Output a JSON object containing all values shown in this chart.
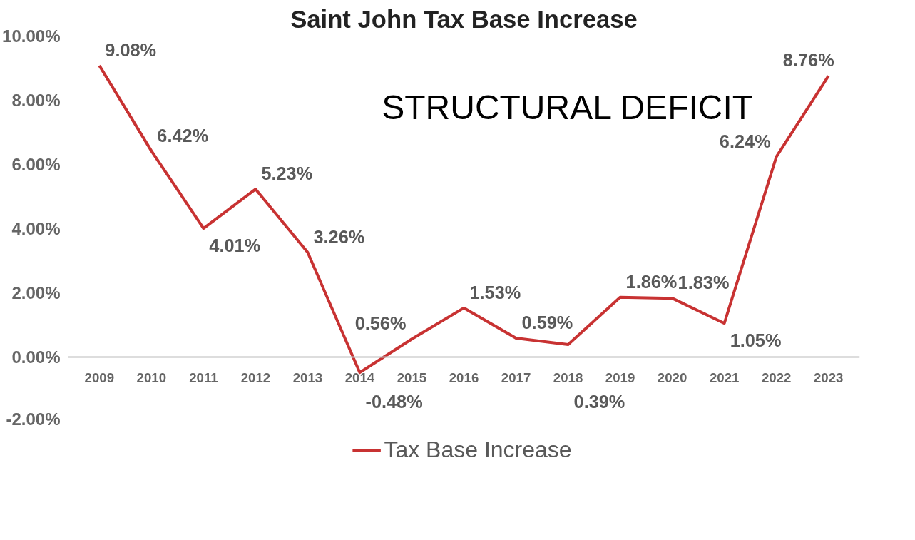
{
  "chart_data": {
    "type": "line",
    "title": "Saint John Tax Base Increase",
    "categories": [
      "2009",
      "2010",
      "2011",
      "2012",
      "2013",
      "2014",
      "2015",
      "2016",
      "2017",
      "2018",
      "2019",
      "2020",
      "2021",
      "2022",
      "2023"
    ],
    "series": [
      {
        "name": "Tax Base Increase",
        "color": "#c83232",
        "values": [
          9.08,
          6.42,
          4.01,
          5.23,
          3.26,
          -0.48,
          0.56,
          1.53,
          0.59,
          0.39,
          1.86,
          1.83,
          1.05,
          6.24,
          8.76
        ],
        "value_labels": [
          "9.08%",
          "6.42%",
          "4.01%",
          "5.23%",
          "3.26%",
          "-0.48%",
          "0.56%",
          "1.53%",
          "0.59%",
          "0.39%",
          "1.86%",
          "1.83%",
          "1.05%",
          "6.24%",
          "8.76%"
        ]
      }
    ],
    "ylim": [
      -2,
      10
    ],
    "yticks": [
      {
        "value": -2,
        "label": "-2.00%"
      },
      {
        "value": 0,
        "label": "0.00%"
      },
      {
        "value": 2,
        "label": "2.00%"
      },
      {
        "value": 4,
        "label": "4.00%"
      },
      {
        "value": 6,
        "label": "6.00%"
      },
      {
        "value": 8,
        "label": "8.00%"
      },
      {
        "value": 10,
        "label": "10.00%"
      }
    ],
    "annotations": [
      "STRUCTURAL DEFICIT"
    ],
    "grid": false,
    "legend": "bottom",
    "marker": "none",
    "line_style": "solid"
  }
}
